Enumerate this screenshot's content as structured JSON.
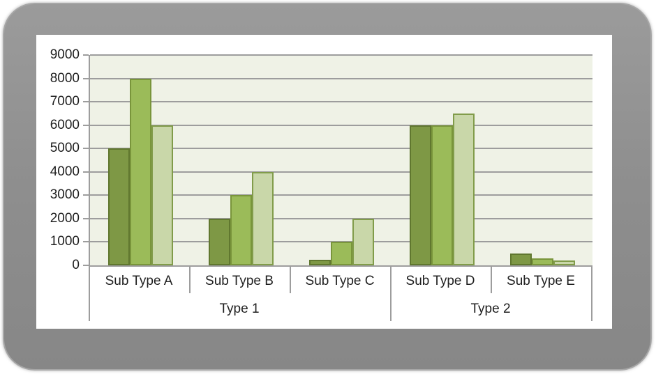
{
  "window": {
    "background_color": "#ffffff",
    "frame_color": "#8e8e8e",
    "canvas_color": "#ffffff"
  },
  "chart_style": {
    "plot_background": "#eff2e6",
    "grid_color": "#9d9d9d",
    "axis_color": "#9d9d9d",
    "text_color": "#1f1f1f"
  },
  "chart_data": {
    "type": "bar",
    "title": "",
    "xlabel": "",
    "ylabel": "",
    "categories": [
      "Sub Type A",
      "Sub Type B",
      "Sub Type C",
      "Sub Type D",
      "Sub Type E"
    ],
    "type_groups": [
      {
        "label": "Type 1",
        "span": 3
      },
      {
        "label": "Type 2",
        "span": 2
      }
    ],
    "series": [
      {
        "name": "dark-green",
        "color": "#7e9845",
        "border": "#60772f",
        "values": [
          5000,
          2000,
          250,
          6000,
          500
        ]
      },
      {
        "name": "mid-green",
        "color": "#9bbb59",
        "border": "#79953b",
        "values": [
          8000,
          3000,
          1000,
          6000,
          300
        ]
      },
      {
        "name": "light-green",
        "color": "#c9d7a9",
        "border": "#819c4a",
        "values": [
          6000,
          4000,
          2000,
          6500,
          200
        ]
      }
    ],
    "yticks": [
      0,
      1000,
      2000,
      3000,
      4000,
      5000,
      6000,
      7000,
      8000,
      9000
    ],
    "ylim": [
      0,
      9000
    ],
    "grid": true,
    "legend": "none"
  }
}
